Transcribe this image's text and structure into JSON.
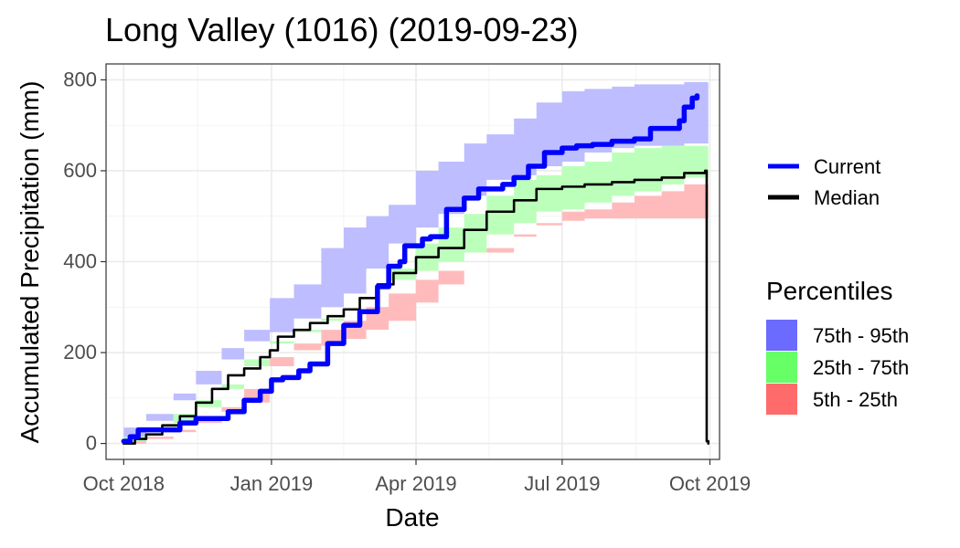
{
  "chart_data": {
    "type": "area",
    "title": "Long Valley (1016) (2019-09-23)",
    "xlabel": "Date",
    "ylabel": "Accumulated Precipitation (mm)",
    "xlim": [
      "2018-09-20",
      "2019-10-07"
    ],
    "ylim": [
      -35,
      835
    ],
    "x_ticks": [
      {
        "date": "2018-10-01",
        "label": "Oct 2018"
      },
      {
        "date": "2019-01-01",
        "label": "Jan 2019"
      },
      {
        "date": "2019-04-01",
        "label": "Apr 2019"
      },
      {
        "date": "2019-07-01",
        "label": "Jul 2019"
      },
      {
        "date": "2019-10-01",
        "label": "Oct 2019"
      }
    ],
    "y_ticks": [
      0,
      200,
      400,
      600,
      800
    ],
    "grid": true,
    "legend_position": "right",
    "line_legend": [
      {
        "label": "Current",
        "color": "#0000ff"
      },
      {
        "label": "Median",
        "color": "#000000"
      }
    ],
    "percentiles_title": "Percentiles",
    "percentile_legend": [
      {
        "label": "75th - 95th",
        "color": "#6b6bff"
      },
      {
        "label": "25th - 75th",
        "color": "#66ff66"
      },
      {
        "label": "5th - 25th",
        "color": "#ff6b6b"
      }
    ],
    "bands": [
      {
        "name": "75th - 95th",
        "color": "#bdbdff",
        "x": [
          "2018-10-01",
          "2018-10-15",
          "2018-11-01",
          "2018-11-15",
          "2018-12-01",
          "2018-12-15",
          "2018-12-31",
          "2019-01-15",
          "2019-02-01",
          "2019-02-15",
          "2019-03-01",
          "2019-03-15",
          "2019-04-01",
          "2019-04-15",
          "2019-05-01",
          "2019-05-15",
          "2019-06-01",
          "2019-06-15",
          "2019-07-01",
          "2019-07-15",
          "2019-08-01",
          "2019-08-15",
          "2019-09-01",
          "2019-09-15",
          "2019-09-30"
        ],
        "lower": [
          0,
          35,
          65,
          95,
          130,
          185,
          225,
          245,
          275,
          300,
          330,
          385,
          440,
          475,
          505,
          545,
          580,
          590,
          610,
          620,
          640,
          650,
          655,
          655,
          660
        ],
        "upper": [
          10,
          50,
          110,
          160,
          210,
          250,
          320,
          350,
          430,
          475,
          500,
          525,
          600,
          620,
          660,
          680,
          715,
          750,
          775,
          780,
          785,
          790,
          790,
          795,
          795
        ]
      },
      {
        "name": "25th - 75th",
        "color": "#bbffbb",
        "x": [
          "2018-10-01",
          "2018-10-15",
          "2018-11-01",
          "2018-11-15",
          "2018-12-01",
          "2018-12-15",
          "2018-12-31",
          "2019-01-15",
          "2019-02-01",
          "2019-02-15",
          "2019-03-01",
          "2019-03-15",
          "2019-04-01",
          "2019-04-15",
          "2019-05-01",
          "2019-05-15",
          "2019-06-01",
          "2019-06-15",
          "2019-07-01",
          "2019-07-15",
          "2019-08-01",
          "2019-08-15",
          "2019-09-01",
          "2019-09-15",
          "2019-09-30"
        ],
        "lower": [
          0,
          15,
          30,
          45,
          80,
          120,
          170,
          220,
          250,
          270,
          300,
          330,
          360,
          380,
          400,
          420,
          460,
          485,
          510,
          515,
          530,
          545,
          555,
          570,
          585
        ],
        "upper": [
          0,
          35,
          65,
          95,
          130,
          185,
          225,
          245,
          275,
          300,
          330,
          385,
          440,
          475,
          505,
          545,
          580,
          590,
          610,
          620,
          640,
          650,
          655,
          655,
          660
        ]
      },
      {
        "name": "5th - 25th",
        "color": "#ffbbbb",
        "x": [
          "2018-10-01",
          "2018-10-15",
          "2018-11-01",
          "2018-11-15",
          "2018-12-01",
          "2018-12-15",
          "2018-12-31",
          "2019-01-15",
          "2019-02-01",
          "2019-02-15",
          "2019-03-01",
          "2019-03-15",
          "2019-04-01",
          "2019-04-15",
          "2019-05-01",
          "2019-05-15",
          "2019-06-01",
          "2019-06-15",
          "2019-07-01",
          "2019-07-15",
          "2019-08-01",
          "2019-08-15",
          "2019-09-01",
          "2019-09-15",
          "2019-09-30"
        ],
        "lower": [
          0,
          5,
          10,
          25,
          50,
          70,
          90,
          190,
          205,
          215,
          230,
          250,
          270,
          310,
          350,
          400,
          430,
          455,
          480,
          490,
          495,
          495,
          495,
          495,
          495
        ],
        "upper": [
          0,
          15,
          30,
          45,
          80,
          120,
          170,
          220,
          250,
          270,
          300,
          330,
          360,
          380,
          400,
          420,
          460,
          485,
          510,
          515,
          530,
          545,
          555,
          570,
          585
        ]
      }
    ],
    "series": [
      {
        "name": "Current",
        "color": "#0000ff",
        "x": [
          "2018-10-01",
          "2018-10-05",
          "2018-10-10",
          "2018-10-25",
          "2018-11-05",
          "2018-11-15",
          "2018-11-25",
          "2018-12-05",
          "2018-12-15",
          "2018-12-25",
          "2019-01-01",
          "2019-01-08",
          "2019-01-18",
          "2019-01-25",
          "2019-02-05",
          "2019-02-15",
          "2019-02-25",
          "2019-03-08",
          "2019-03-15",
          "2019-03-22",
          "2019-03-25",
          "2019-04-01",
          "2019-04-05",
          "2019-04-10",
          "2019-04-20",
          "2019-05-01",
          "2019-05-10",
          "2019-05-20",
          "2019-05-25",
          "2019-06-01",
          "2019-06-10",
          "2019-06-20",
          "2019-07-01",
          "2019-07-10",
          "2019-07-20",
          "2019-08-01",
          "2019-08-15",
          "2019-08-25",
          "2019-09-05",
          "2019-09-12",
          "2019-09-15",
          "2019-09-20",
          "2019-09-23"
        ],
        "y": [
          5,
          15,
          30,
          30,
          45,
          55,
          55,
          70,
          95,
          115,
          140,
          145,
          160,
          175,
          220,
          260,
          290,
          345,
          390,
          400,
          435,
          435,
          450,
          455,
          515,
          540,
          560,
          560,
          570,
          585,
          610,
          640,
          650,
          655,
          658,
          665,
          670,
          693,
          693,
          710,
          740,
          760,
          765
        ]
      },
      {
        "name": "Median",
        "color": "#000000",
        "x": [
          "2018-10-01",
          "2018-10-08",
          "2018-10-15",
          "2018-10-25",
          "2018-11-05",
          "2018-11-15",
          "2018-11-25",
          "2018-12-05",
          "2018-12-15",
          "2018-12-25",
          "2018-12-31",
          "2019-01-05",
          "2019-01-15",
          "2019-01-25",
          "2019-02-05",
          "2019-02-15",
          "2019-02-25",
          "2019-03-08",
          "2019-03-18",
          "2019-04-01",
          "2019-04-15",
          "2019-05-01",
          "2019-05-15",
          "2019-06-01",
          "2019-06-15",
          "2019-07-01",
          "2019-07-15",
          "2019-08-01",
          "2019-08-15",
          "2019-09-01",
          "2019-09-15",
          "2019-09-28",
          "2019-09-29",
          "2019-09-30"
        ],
        "y": [
          0,
          10,
          20,
          40,
          60,
          90,
          120,
          150,
          165,
          190,
          205,
          235,
          250,
          265,
          280,
          295,
          320,
          350,
          375,
          410,
          430,
          470,
          510,
          535,
          560,
          565,
          570,
          575,
          580,
          585,
          595,
          600,
          5,
          0
        ]
      }
    ]
  }
}
